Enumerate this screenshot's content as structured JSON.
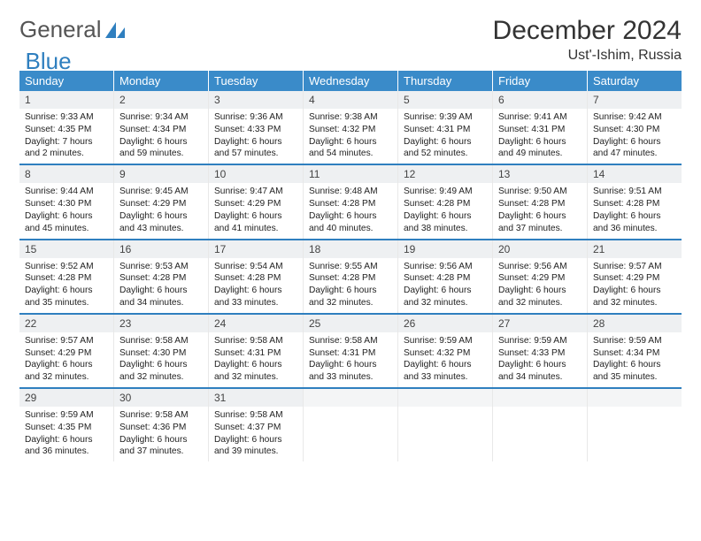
{
  "logo": {
    "word1": "General",
    "word2": "Blue"
  },
  "title": "December 2024",
  "location": "Ust'-Ishim, Russia",
  "colors": {
    "header_bg": "#3a8bc9",
    "header_text": "#ffffff",
    "week_border": "#2f7fbf",
    "daynum_bg": "#eef0f2",
    "text": "#222222",
    "logo_gray": "#555555",
    "logo_blue": "#2f7fbf"
  },
  "day_headers": [
    "Sunday",
    "Monday",
    "Tuesday",
    "Wednesday",
    "Thursday",
    "Friday",
    "Saturday"
  ],
  "weeks": [
    [
      {
        "n": "1",
        "sr": "Sunrise: 9:33 AM",
        "ss": "Sunset: 4:35 PM",
        "dl1": "Daylight: 7 hours",
        "dl2": "and 2 minutes."
      },
      {
        "n": "2",
        "sr": "Sunrise: 9:34 AM",
        "ss": "Sunset: 4:34 PM",
        "dl1": "Daylight: 6 hours",
        "dl2": "and 59 minutes."
      },
      {
        "n": "3",
        "sr": "Sunrise: 9:36 AM",
        "ss": "Sunset: 4:33 PM",
        "dl1": "Daylight: 6 hours",
        "dl2": "and 57 minutes."
      },
      {
        "n": "4",
        "sr": "Sunrise: 9:38 AM",
        "ss": "Sunset: 4:32 PM",
        "dl1": "Daylight: 6 hours",
        "dl2": "and 54 minutes."
      },
      {
        "n": "5",
        "sr": "Sunrise: 9:39 AM",
        "ss": "Sunset: 4:31 PM",
        "dl1": "Daylight: 6 hours",
        "dl2": "and 52 minutes."
      },
      {
        "n": "6",
        "sr": "Sunrise: 9:41 AM",
        "ss": "Sunset: 4:31 PM",
        "dl1": "Daylight: 6 hours",
        "dl2": "and 49 minutes."
      },
      {
        "n": "7",
        "sr": "Sunrise: 9:42 AM",
        "ss": "Sunset: 4:30 PM",
        "dl1": "Daylight: 6 hours",
        "dl2": "and 47 minutes."
      }
    ],
    [
      {
        "n": "8",
        "sr": "Sunrise: 9:44 AM",
        "ss": "Sunset: 4:30 PM",
        "dl1": "Daylight: 6 hours",
        "dl2": "and 45 minutes."
      },
      {
        "n": "9",
        "sr": "Sunrise: 9:45 AM",
        "ss": "Sunset: 4:29 PM",
        "dl1": "Daylight: 6 hours",
        "dl2": "and 43 minutes."
      },
      {
        "n": "10",
        "sr": "Sunrise: 9:47 AM",
        "ss": "Sunset: 4:29 PM",
        "dl1": "Daylight: 6 hours",
        "dl2": "and 41 minutes."
      },
      {
        "n": "11",
        "sr": "Sunrise: 9:48 AM",
        "ss": "Sunset: 4:28 PM",
        "dl1": "Daylight: 6 hours",
        "dl2": "and 40 minutes."
      },
      {
        "n": "12",
        "sr": "Sunrise: 9:49 AM",
        "ss": "Sunset: 4:28 PM",
        "dl1": "Daylight: 6 hours",
        "dl2": "and 38 minutes."
      },
      {
        "n": "13",
        "sr": "Sunrise: 9:50 AM",
        "ss": "Sunset: 4:28 PM",
        "dl1": "Daylight: 6 hours",
        "dl2": "and 37 minutes."
      },
      {
        "n": "14",
        "sr": "Sunrise: 9:51 AM",
        "ss": "Sunset: 4:28 PM",
        "dl1": "Daylight: 6 hours",
        "dl2": "and 36 minutes."
      }
    ],
    [
      {
        "n": "15",
        "sr": "Sunrise: 9:52 AM",
        "ss": "Sunset: 4:28 PM",
        "dl1": "Daylight: 6 hours",
        "dl2": "and 35 minutes."
      },
      {
        "n": "16",
        "sr": "Sunrise: 9:53 AM",
        "ss": "Sunset: 4:28 PM",
        "dl1": "Daylight: 6 hours",
        "dl2": "and 34 minutes."
      },
      {
        "n": "17",
        "sr": "Sunrise: 9:54 AM",
        "ss": "Sunset: 4:28 PM",
        "dl1": "Daylight: 6 hours",
        "dl2": "and 33 minutes."
      },
      {
        "n": "18",
        "sr": "Sunrise: 9:55 AM",
        "ss": "Sunset: 4:28 PM",
        "dl1": "Daylight: 6 hours",
        "dl2": "and 32 minutes."
      },
      {
        "n": "19",
        "sr": "Sunrise: 9:56 AM",
        "ss": "Sunset: 4:28 PM",
        "dl1": "Daylight: 6 hours",
        "dl2": "and 32 minutes."
      },
      {
        "n": "20",
        "sr": "Sunrise: 9:56 AM",
        "ss": "Sunset: 4:29 PM",
        "dl1": "Daylight: 6 hours",
        "dl2": "and 32 minutes."
      },
      {
        "n": "21",
        "sr": "Sunrise: 9:57 AM",
        "ss": "Sunset: 4:29 PM",
        "dl1": "Daylight: 6 hours",
        "dl2": "and 32 minutes."
      }
    ],
    [
      {
        "n": "22",
        "sr": "Sunrise: 9:57 AM",
        "ss": "Sunset: 4:29 PM",
        "dl1": "Daylight: 6 hours",
        "dl2": "and 32 minutes."
      },
      {
        "n": "23",
        "sr": "Sunrise: 9:58 AM",
        "ss": "Sunset: 4:30 PM",
        "dl1": "Daylight: 6 hours",
        "dl2": "and 32 minutes."
      },
      {
        "n": "24",
        "sr": "Sunrise: 9:58 AM",
        "ss": "Sunset: 4:31 PM",
        "dl1": "Daylight: 6 hours",
        "dl2": "and 32 minutes."
      },
      {
        "n": "25",
        "sr": "Sunrise: 9:58 AM",
        "ss": "Sunset: 4:31 PM",
        "dl1": "Daylight: 6 hours",
        "dl2": "and 33 minutes."
      },
      {
        "n": "26",
        "sr": "Sunrise: 9:59 AM",
        "ss": "Sunset: 4:32 PM",
        "dl1": "Daylight: 6 hours",
        "dl2": "and 33 minutes."
      },
      {
        "n": "27",
        "sr": "Sunrise: 9:59 AM",
        "ss": "Sunset: 4:33 PM",
        "dl1": "Daylight: 6 hours",
        "dl2": "and 34 minutes."
      },
      {
        "n": "28",
        "sr": "Sunrise: 9:59 AM",
        "ss": "Sunset: 4:34 PM",
        "dl1": "Daylight: 6 hours",
        "dl2": "and 35 minutes."
      }
    ],
    [
      {
        "n": "29",
        "sr": "Sunrise: 9:59 AM",
        "ss": "Sunset: 4:35 PM",
        "dl1": "Daylight: 6 hours",
        "dl2": "and 36 minutes."
      },
      {
        "n": "30",
        "sr": "Sunrise: 9:58 AM",
        "ss": "Sunset: 4:36 PM",
        "dl1": "Daylight: 6 hours",
        "dl2": "and 37 minutes."
      },
      {
        "n": "31",
        "sr": "Sunrise: 9:58 AM",
        "ss": "Sunset: 4:37 PM",
        "dl1": "Daylight: 6 hours",
        "dl2": "and 39 minutes."
      },
      {
        "empty": true
      },
      {
        "empty": true
      },
      {
        "empty": true
      },
      {
        "empty": true
      }
    ]
  ]
}
